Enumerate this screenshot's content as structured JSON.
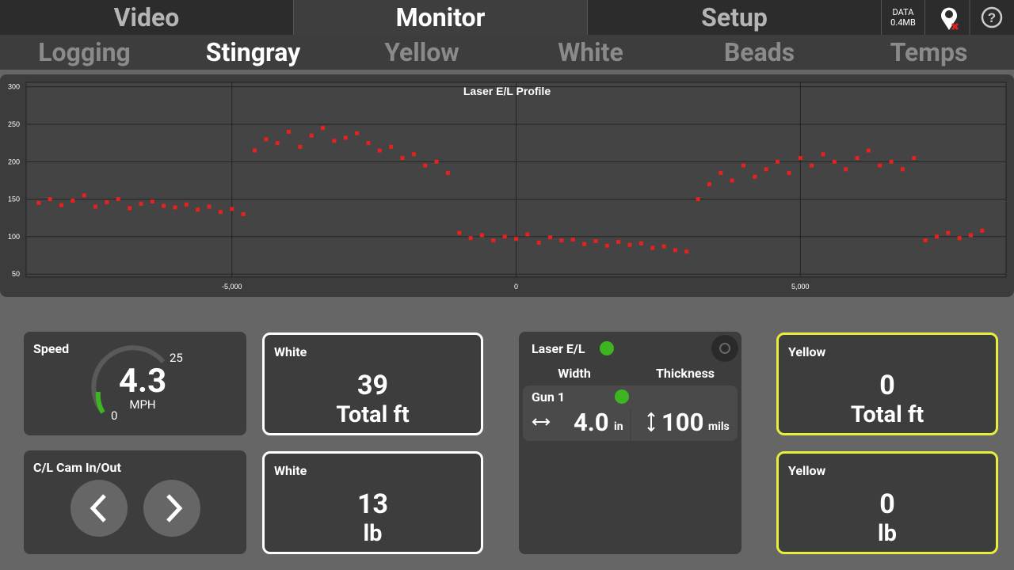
{
  "tabs": [
    "Video",
    "Monitor",
    "Setup"
  ],
  "data_status": {
    "label": "DATA",
    "size": "0.4MB"
  },
  "subtabs": [
    "Logging",
    "Stingray",
    "Yellow",
    "White",
    "Beads",
    "Temps"
  ],
  "chart_data": {
    "type": "scatter",
    "title": "Laser E/L Profile",
    "color": "#e8201e",
    "grid": true,
    "x": [
      -8400,
      -8200,
      -8000,
      -7800,
      -7600,
      -7400,
      -7200,
      -7000,
      -6800,
      -6600,
      -6400,
      -6200,
      -6000,
      -5800,
      -5600,
      -5400,
      -5200,
      -5000,
      -4800,
      -4600,
      -4400,
      -4200,
      -4000,
      -3800,
      -3600,
      -3400,
      -3200,
      -3000,
      -2800,
      -2600,
      -2400,
      -2200,
      -2000,
      -1800,
      -1600,
      -1400,
      -1200,
      -1000,
      -800,
      -600,
      -400,
      -200,
      0,
      200,
      400,
      600,
      800,
      1000,
      1200,
      1400,
      1600,
      1800,
      2000,
      2200,
      2400,
      2600,
      2800,
      3000,
      3200,
      3400,
      3600,
      3800,
      4000,
      4200,
      4400,
      4600,
      4800,
      5000,
      5200,
      5400,
      5600,
      5800,
      6000,
      6200,
      6400,
      6600,
      6800,
      7000,
      7200,
      7400,
      7600,
      7800,
      8000,
      8200
    ],
    "values": [
      145,
      150,
      142,
      148,
      155,
      140,
      146,
      150,
      138,
      144,
      147,
      141,
      139,
      143,
      136,
      140,
      133,
      137,
      130,
      215,
      230,
      225,
      240,
      220,
      235,
      245,
      228,
      232,
      238,
      225,
      215,
      220,
      205,
      210,
      195,
      200,
      185,
      105,
      98,
      102,
      95,
      100,
      97,
      103,
      92,
      99,
      95,
      96,
      90,
      94,
      88,
      93,
      89,
      91,
      85,
      87,
      82,
      80,
      150,
      170,
      185,
      175,
      195,
      180,
      190,
      200,
      185,
      205,
      195,
      210,
      200,
      190,
      205,
      215,
      195,
      200,
      190,
      205,
      95,
      100,
      105,
      98,
      102,
      108
    ],
    "xlim": [
      -8620,
      8620
    ],
    "ylim": [
      46,
      306
    ],
    "xticks": [
      {
        "value": -5000,
        "label": "-5,000"
      },
      0,
      {
        "value": 5000,
        "label": "5,000"
      }
    ],
    "yticks": [
      50,
      100,
      150,
      200,
      250,
      300
    ]
  },
  "speed": {
    "title": "Speed",
    "value": "4.3",
    "unit": "MPH",
    "min": "0",
    "max": "25"
  },
  "cam": {
    "title": "C/L Cam In/Out"
  },
  "white_total": {
    "title": "White",
    "value": "39",
    "unit": "Total ft"
  },
  "white_lb": {
    "title": "White",
    "value": "13",
    "unit": "lb"
  },
  "laser": {
    "title": "Laser E/L",
    "width_label": "Width",
    "thickness_label": "Thickness",
    "gun": "Gun 1",
    "width": "4.0",
    "width_unit": "in",
    "thickness": "100",
    "thickness_unit": "mils"
  },
  "yellow_total": {
    "title": "Yellow",
    "value": "0",
    "unit": "Total ft"
  },
  "yellow_lb": {
    "title": "Yellow",
    "value": "0",
    "unit": "lb"
  }
}
